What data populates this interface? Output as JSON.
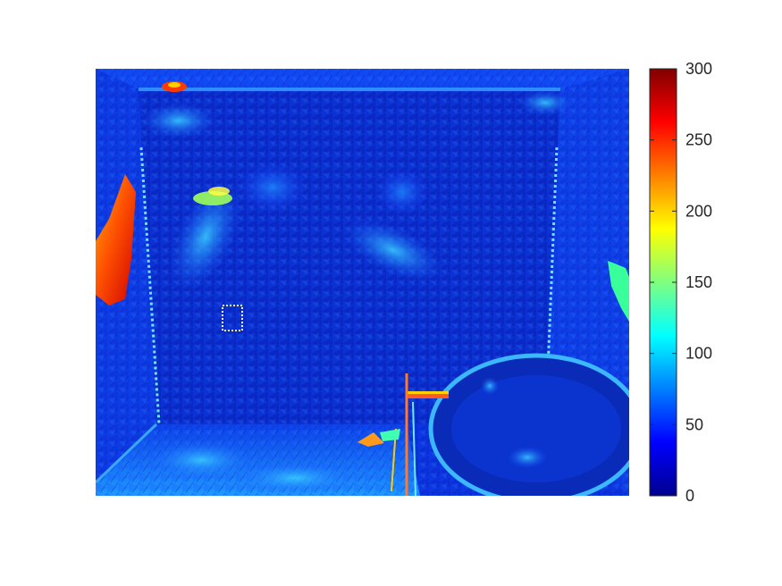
{
  "chart_data": {
    "type": "heatmap",
    "title": "",
    "xlabel": "",
    "ylabel": "",
    "axes_visible": false,
    "grid": false,
    "legend": "none",
    "colormap": "jet",
    "colorbar": {
      "location": "right",
      "min": 0,
      "max": 300,
      "ticks": [
        0,
        50,
        100,
        150,
        200,
        250,
        300
      ],
      "tick_labels": [
        "0",
        "50",
        "100",
        "150",
        "200",
        "250",
        "300"
      ]
    },
    "scene_description": "error-magnitude map of a bathroom scene (walls, shower head, bathtub, faucet)",
    "typical_value_range": [
      15,
      60
    ],
    "high_value_regions": [
      {
        "name": "left-edge-wall-strip",
        "value_range": [
          180,
          280
        ]
      },
      {
        "name": "shower-head",
        "value_range": [
          130,
          200
        ]
      },
      {
        "name": "faucet",
        "value_range": [
          150,
          260
        ]
      },
      {
        "name": "top-ceiling-corner",
        "value_range": [
          180,
          250
        ]
      },
      {
        "name": "right-edge-strip",
        "value_range": [
          80,
          180
        ]
      }
    ]
  }
}
